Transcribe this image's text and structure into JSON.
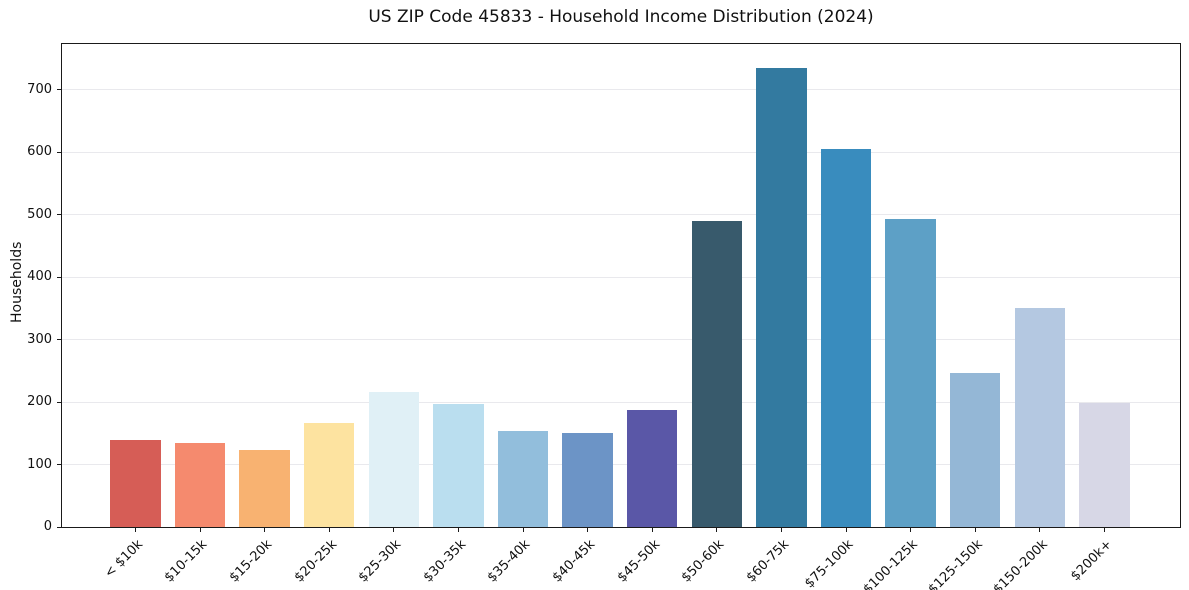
{
  "chart_data": {
    "type": "bar",
    "title": "US ZIP Code 45833 - Household Income Distribution (2024)",
    "xlabel": "",
    "ylabel": "Households",
    "categories": [
      "< $10k",
      "$10-15k",
      "$15-20k",
      "$20-25k",
      "$25-30k",
      "$30-35k",
      "$35-40k",
      "$40-45k",
      "$45-50k",
      "$50-60k",
      "$60-75k",
      "$75-100k",
      "$100-125k",
      "$125-150k",
      "$150-200k",
      "$200k+"
    ],
    "values": [
      140,
      134,
      124,
      167,
      216,
      197,
      154,
      150,
      188,
      490,
      734,
      605,
      493,
      247,
      351,
      198
    ],
    "bar_colors": [
      "#d65d56",
      "#f58a6e",
      "#f8b271",
      "#fde3a0",
      "#e0f0f6",
      "#badeef",
      "#92bedc",
      "#6c94c6",
      "#5a57a7",
      "#385a6c",
      "#337aa0",
      "#398cbe",
      "#5da0c6",
      "#94b7d6",
      "#b4c8e1",
      "#d7d7e6"
    ],
    "yticks": [
      0,
      100,
      200,
      300,
      400,
      500,
      600,
      700
    ],
    "ylim": [
      0,
      773
    ],
    "grid": "horizontal-only",
    "legend": "none",
    "axis_color": "#1a1a1a",
    "grid_color": "#e9e9ed",
    "background_color": "#ffffff"
  }
}
